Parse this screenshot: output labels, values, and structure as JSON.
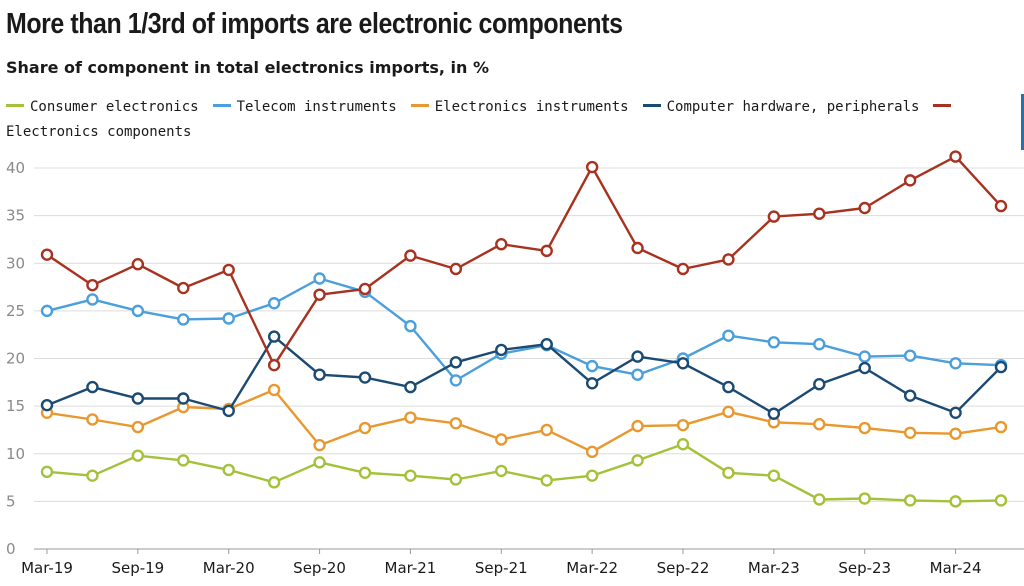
{
  "chart_data": {
    "type": "line",
    "title": "More than 1/3rd of imports are electronic components",
    "subtitle": "Share of component in total electronics imports, in %",
    "ylim": [
      0,
      40
    ],
    "yticks": [
      0,
      5,
      10,
      15,
      20,
      25,
      30,
      35,
      40
    ],
    "grid": true,
    "legend_position": "top",
    "x": [
      "Mar-19",
      "Jun-19",
      "Sep-19",
      "Dec-19",
      "Mar-20",
      "Jun-20",
      "Sep-20",
      "Dec-20",
      "Mar-21",
      "Jun-21",
      "Sep-21",
      "Dec-21",
      "Mar-22",
      "Jun-22",
      "Sep-22",
      "Dec-22",
      "Mar-23",
      "Jun-23",
      "Sep-23",
      "Dec-23",
      "Mar-24",
      "Jun-24"
    ],
    "xtick_labels": [
      "Mar-19",
      "Sep-19",
      "Mar-20",
      "Sep-20",
      "Mar-21",
      "Sep-21",
      "Mar-22",
      "Sep-22",
      "Mar-23",
      "Sep-23",
      "Mar-24"
    ],
    "series": [
      {
        "name": "Consumer electronics",
        "color": "#a3c23a",
        "values": [
          8.1,
          7.7,
          9.8,
          9.3,
          8.3,
          7.0,
          9.1,
          8.0,
          7.7,
          7.3,
          8.2,
          7.2,
          7.7,
          9.3,
          11.0,
          8.0,
          7.7,
          5.2,
          5.3,
          5.1,
          5.0,
          5.1
        ]
      },
      {
        "name": "Telecom instruments",
        "color": "#4a9fdc",
        "values": [
          25.0,
          26.2,
          25.0,
          24.1,
          24.2,
          25.8,
          28.4,
          27.0,
          23.4,
          17.7,
          20.5,
          21.4,
          19.2,
          18.3,
          20.0,
          22.4,
          21.7,
          21.5,
          20.2,
          20.3,
          19.5,
          19.3
        ]
      },
      {
        "name": "Electronics instruments",
        "color": "#e8982e",
        "values": [
          14.3,
          13.6,
          12.8,
          14.9,
          14.7,
          16.7,
          10.9,
          12.7,
          13.8,
          13.2,
          11.5,
          12.5,
          10.2,
          12.9,
          13.0,
          14.4,
          13.3,
          13.1,
          12.7,
          12.2,
          12.1,
          12.8
        ]
      },
      {
        "name": "Computer hardware, peripherals",
        "color": "#1b4a72",
        "values": [
          15.1,
          17.0,
          15.8,
          15.8,
          14.5,
          22.3,
          18.3,
          18.0,
          17.0,
          19.6,
          20.9,
          21.5,
          17.4,
          20.2,
          19.5,
          17.0,
          14.2,
          17.3,
          19.0,
          16.1,
          14.3,
          19.1
        ]
      },
      {
        "name": "Electronics components",
        "color": "#a83220",
        "values": [
          30.9,
          27.7,
          29.9,
          27.4,
          29.3,
          19.3,
          26.7,
          27.3,
          30.8,
          29.4,
          32.0,
          31.3,
          40.1,
          31.6,
          29.4,
          30.4,
          34.9,
          35.2,
          35.8,
          38.7,
          41.2,
          36.0
        ]
      }
    ]
  }
}
